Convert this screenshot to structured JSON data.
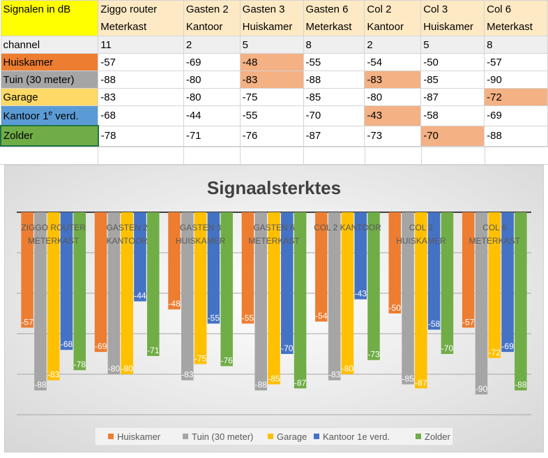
{
  "table": {
    "corner": "Signalen in dB",
    "headers": [
      [
        "Ziggo router",
        "Meterkast"
      ],
      [
        "Gasten 2",
        "Kantoor"
      ],
      [
        "Gasten 3",
        "Huiskamer"
      ],
      [
        "Gasten 6",
        "Meterkast"
      ],
      [
        "Col 2",
        "Kantoor"
      ],
      [
        "Col 3",
        "Huiskamer"
      ],
      [
        "Col 6",
        "Meterkast"
      ]
    ],
    "channel_label": "channel",
    "channels": [
      "11",
      "2",
      "5",
      "8",
      "2",
      "5",
      "8"
    ],
    "rows": [
      {
        "label": "Huiskamer",
        "values": [
          "-57",
          "-69",
          "-48",
          "-55",
          "-54",
          "-50",
          "-57"
        ],
        "highlight": [
          2
        ]
      },
      {
        "label": "Tuin (30 meter)",
        "values": [
          "-88",
          "-80",
          "-83",
          "-88",
          "-83",
          "-85",
          "-90"
        ],
        "highlight": [
          2,
          4
        ]
      },
      {
        "label": "Garage",
        "values": [
          "-83",
          "-80",
          "-75",
          "-85",
          "-80",
          "-87",
          "-72"
        ],
        "highlight": [
          6
        ]
      },
      {
        "label_main": "Kantoor 1",
        "label_sup": "e",
        "label_tail": " verd.",
        "values": [
          "-68",
          "-44",
          "-55",
          "-70",
          "-43",
          "-58",
          "-69"
        ],
        "highlight": [
          4
        ]
      },
      {
        "label": "Zolder",
        "values": [
          "-78",
          "-71",
          "-76",
          "-87",
          "-73",
          "-70",
          "-88"
        ],
        "highlight": [
          5
        ]
      }
    ]
  },
  "chart_data": {
    "type": "bar",
    "title": "Signaalsterktes",
    "categories": [
      [
        "ZIGGO ROUTER",
        "METERKAST"
      ],
      [
        "GASTEN 2",
        "KANTOOR"
      ],
      [
        "GASTEN 3",
        "HUISKAMER"
      ],
      [
        "GASTEN 6",
        "METERKAST"
      ],
      [
        "COL 2 KANTOOR"
      ],
      [
        "COL 3",
        "HUISKAMER"
      ],
      [
        "COL 6",
        "METERKAST"
      ]
    ],
    "series": [
      {
        "name": "Huiskamer",
        "color": "#ed7d31",
        "values": [
          -57,
          -69,
          -48,
          -55,
          -54,
          -50,
          -57
        ]
      },
      {
        "name": "Tuin (30 meter)",
        "color": "#a5a5a5",
        "values": [
          -88,
          -80,
          -83,
          -88,
          -83,
          -85,
          -90
        ]
      },
      {
        "name": "Garage",
        "color": "#ffc000",
        "values": [
          -83,
          -80,
          -75,
          -85,
          -80,
          -87,
          -72
        ]
      },
      {
        "name": "Kantoor 1e verd.",
        "color": "#4472c4",
        "values": [
          -68,
          -44,
          -55,
          -70,
          -43,
          -58,
          -69
        ]
      },
      {
        "name": "Zolder",
        "color": "#70ad47",
        "values": [
          -78,
          -71,
          -76,
          -87,
          -73,
          -70,
          -88
        ]
      }
    ],
    "ylim": [
      -100,
      0
    ],
    "grid": true,
    "legend_position": "bottom"
  }
}
